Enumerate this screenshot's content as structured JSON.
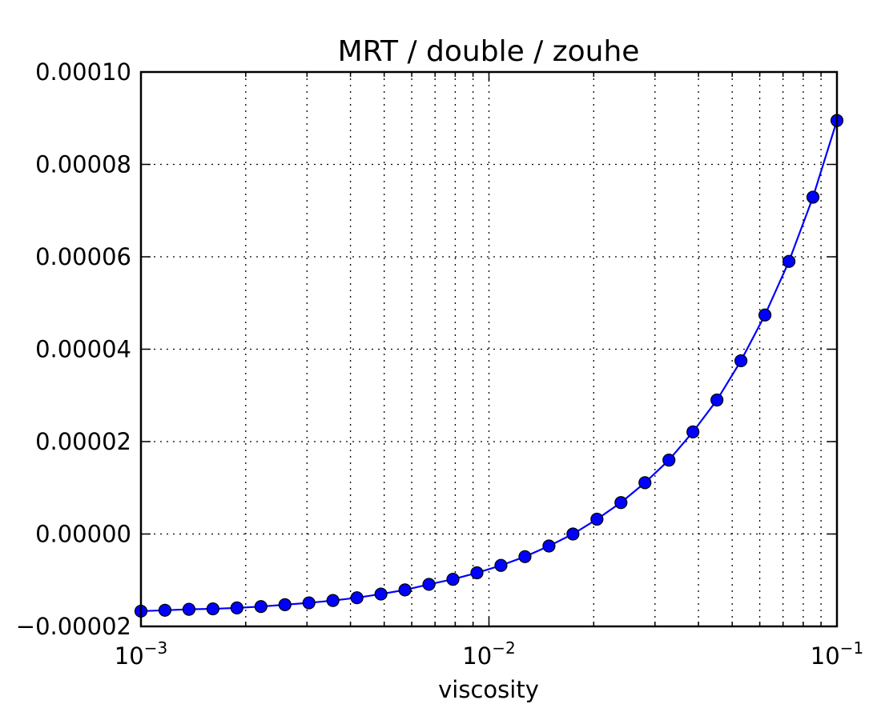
{
  "chart_data": {
    "type": "line",
    "title": "MRT / double / zouhe",
    "xlabel": "viscosity",
    "ylabel": "",
    "xscale": "log",
    "xlim": [
      0.001,
      0.1
    ],
    "ylim": [
      -2e-05,
      0.0001
    ],
    "grid": true,
    "x_ticks": [
      {
        "value": 0.001,
        "base": "10",
        "exp": "−3"
      },
      {
        "value": 0.01,
        "base": "10",
        "exp": "−2"
      },
      {
        "value": 0.1,
        "base": "10",
        "exp": "−1"
      }
    ],
    "y_ticks": [
      {
        "value": -2e-05,
        "label": "−0.00002"
      },
      {
        "value": 0.0,
        "label": "0.00000"
      },
      {
        "value": 2e-05,
        "label": "0.00002"
      },
      {
        "value": 4e-05,
        "label": "0.00004"
      },
      {
        "value": 6e-05,
        "label": "0.00006"
      },
      {
        "value": 8e-05,
        "label": "0.00008"
      },
      {
        "value": 0.0001,
        "label": "0.00010"
      }
    ],
    "series": [
      {
        "color": "#0000ff",
        "marker": "circle",
        "x": [
          0.001,
          0.001172,
          0.001374,
          0.00161,
          0.001887,
          0.002212,
          0.002593,
          0.003039,
          0.003562,
          0.004175,
          0.004894,
          0.005736,
          0.006723,
          0.00788,
          0.009237,
          0.010826,
          0.01269,
          0.014874,
          0.017433,
          0.020434,
          0.02395,
          0.028072,
          0.032903,
          0.038566,
          0.045204,
          0.052983,
          0.062102,
          0.07279,
          0.085317,
          0.1
        ],
        "y": [
          -1.67e-05,
          -1.65e-05,
          -1.63e-05,
          -1.62e-05,
          -1.6e-05,
          -1.57e-05,
          -1.53e-05,
          -1.49e-05,
          -1.44e-05,
          -1.38e-05,
          -1.3e-05,
          -1.21e-05,
          -1.09e-05,
          -9.8e-06,
          -8.4e-06,
          -6.8e-06,
          -4.9e-06,
          -2.6e-06,
          0.0,
          3.2e-06,
          6.8e-06,
          1.11e-05,
          1.6e-05,
          2.21e-05,
          2.9e-05,
          3.75e-05,
          4.74e-05,
          5.9e-05,
          7.29e-05,
          8.95e-05
        ]
      }
    ]
  }
}
